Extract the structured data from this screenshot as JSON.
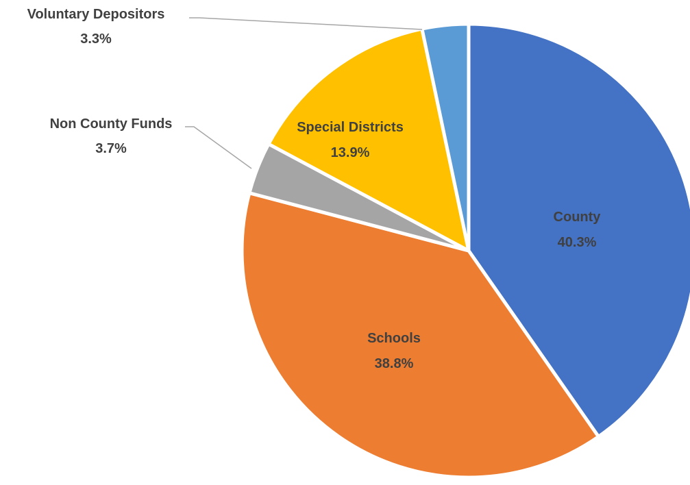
{
  "chart_data": {
    "type": "pie",
    "title": "",
    "start_angle_deg": 0,
    "direction": "clockwise",
    "slices": [
      {
        "name": "County",
        "value": 40.3,
        "label": "40.3%",
        "color": "#4472C4",
        "label_style": "inside"
      },
      {
        "name": "Schools",
        "value": 38.8,
        "label": "38.8%",
        "color": "#ED7D31",
        "label_style": "inside"
      },
      {
        "name": "Non County Funds",
        "value": 3.7,
        "label": "3.7%",
        "color": "#A5A5A5",
        "label_style": "outside-leader"
      },
      {
        "name": "Special Districts",
        "value": 13.9,
        "label": "13.9%",
        "color": "#FFC000",
        "label_style": "inside"
      },
      {
        "name": "Voluntary Depositors",
        "value": 3.3,
        "label": "3.3%",
        "color": "#5B9BD5",
        "label_style": "outside-leader"
      }
    ],
    "slice_border_color": "#FFFFFF",
    "label_color": "#404040",
    "leader_line_color": "#A6A6A6",
    "legend": "none"
  }
}
